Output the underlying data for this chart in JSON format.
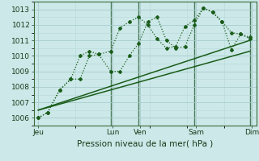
{
  "background_color": "#cce8e8",
  "grid_color_major": "#a8cccc",
  "grid_color_minor": "#b8d8d8",
  "line_color": "#1a5c1a",
  "title": "Pression niveau de la mer( hPa )",
  "ylim": [
    1005.5,
    1013.5
  ],
  "yticks": [
    1006,
    1007,
    1008,
    1009,
    1010,
    1011,
    1012,
    1013
  ],
  "xlim": [
    0,
    24
  ],
  "x_day_labels": [
    "Jeu",
    "Lun",
    "Ven",
    "Sam",
    "Dim"
  ],
  "x_day_positions": [
    0.5,
    8.5,
    11.5,
    17.5,
    23.5
  ],
  "x_vlines": [
    8.3,
    11.3,
    17.3,
    23.3
  ],
  "series1_x": [
    0.5,
    1.5,
    2.8,
    4.0,
    5.0,
    6.0,
    7.0,
    8.3,
    9.3,
    10.3,
    11.3,
    12.3,
    13.3,
    14.3,
    15.3,
    16.3,
    17.3,
    18.3,
    19.3,
    20.3,
    21.3,
    22.3,
    23.3
  ],
  "series1_y": [
    1006.0,
    1006.35,
    1007.8,
    1008.5,
    1010.0,
    1010.3,
    1010.1,
    1010.3,
    1011.8,
    1012.2,
    1012.5,
    1012.0,
    1011.1,
    1010.5,
    1010.6,
    1011.9,
    1012.3,
    1013.1,
    1012.8,
    1012.2,
    1011.5,
    1011.4,
    1011.2
  ],
  "series2_x": [
    0.5,
    1.5,
    2.8,
    4.0,
    5.0,
    6.0,
    7.0,
    8.3,
    9.3,
    10.3,
    11.3,
    12.3,
    13.3,
    14.3,
    15.3,
    16.3,
    17.3,
    18.3,
    19.3,
    20.3,
    21.3,
    22.3,
    23.3
  ],
  "series2_y": [
    1006.0,
    1006.35,
    1007.8,
    1008.5,
    1008.5,
    1010.0,
    1010.1,
    1009.0,
    1009.0,
    1010.0,
    1010.8,
    1012.2,
    1012.5,
    1011.0,
    1010.5,
    1010.6,
    1012.0,
    1013.1,
    1012.8,
    1012.2,
    1010.4,
    1011.4,
    1011.1
  ],
  "trend1_x": [
    0.5,
    23.3
  ],
  "trend1_y": [
    1006.5,
    1011.0
  ],
  "trend2_x": [
    0.5,
    23.3
  ],
  "trend2_y": [
    1006.5,
    1010.3
  ]
}
